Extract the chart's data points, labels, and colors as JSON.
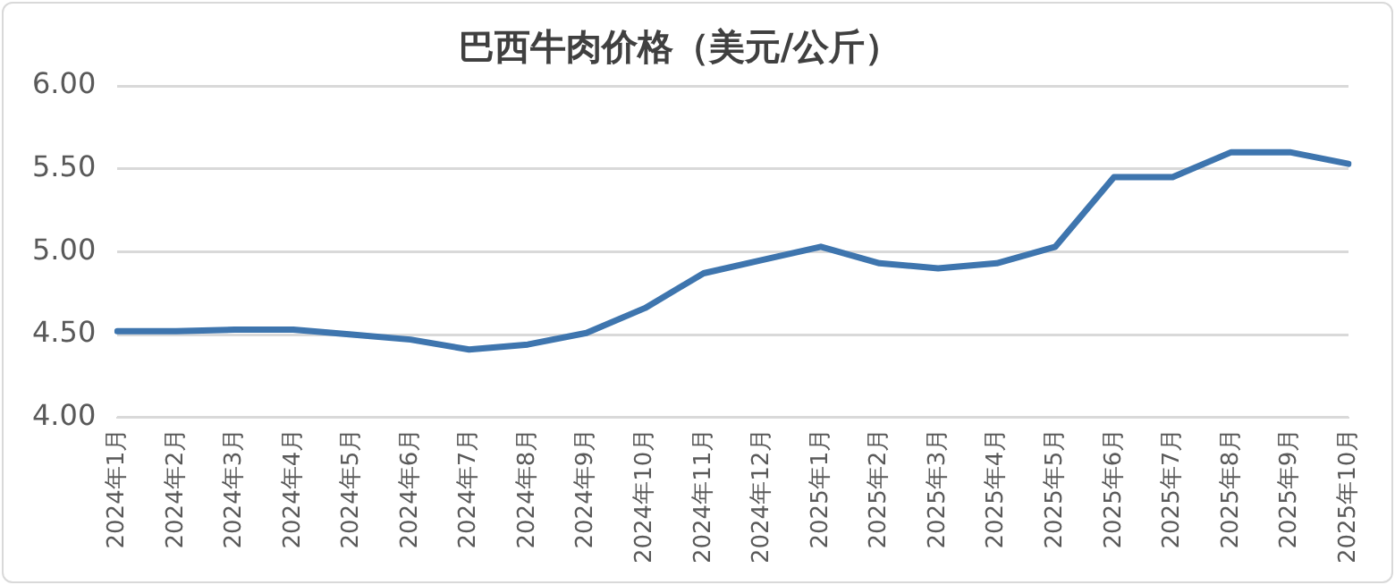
{
  "chart_data": {
    "type": "line",
    "title": "巴西牛肉价格（美元/公斤）",
    "categories": [
      "2024年1月",
      "2024年2月",
      "2024年3月",
      "2024年4月",
      "2024年5月",
      "2024年6月",
      "2024年7月",
      "2024年8月",
      "2024年9月",
      "2024年10月",
      "2024年11月",
      "2024年12月",
      "2025年1月",
      "2025年2月",
      "2025年3月",
      "2025年4月",
      "2025年5月",
      "2025年6月",
      "2025年7月",
      "2025年8月",
      "2025年9月",
      "2025年10月"
    ],
    "series": [
      {
        "color": "#3e75ae",
        "values": [
          4.52,
          4.52,
          4.53,
          4.53,
          4.5,
          4.47,
          4.41,
          4.44,
          4.51,
          4.66,
          4.87,
          4.95,
          5.03,
          4.93,
          4.9,
          4.93,
          5.03,
          5.45,
          5.45,
          5.6,
          5.6,
          5.53
        ]
      }
    ],
    "ylim": [
      4,
      6
    ],
    "yticks": [
      {
        "value": 4,
        "label": "4.00"
      },
      {
        "value": 4.5,
        "label": "4.50"
      },
      {
        "value": 5,
        "label": "5.00"
      },
      {
        "value": 5.5,
        "label": "5.50"
      },
      {
        "value": 6,
        "label": "6.00"
      }
    ],
    "grid": "y",
    "legend": false,
    "marker": "none",
    "line_style": "solid"
  }
}
